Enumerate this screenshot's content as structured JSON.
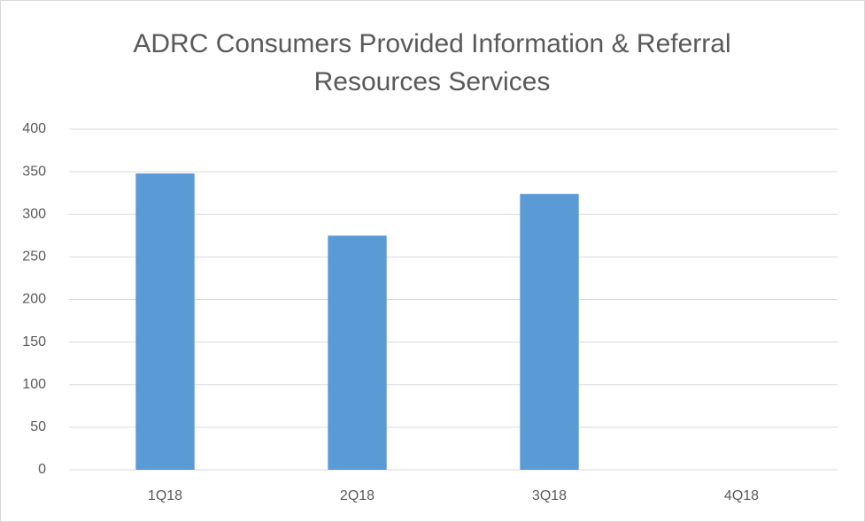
{
  "chart_data": {
    "type": "bar",
    "title": "ADRC Consumers Provided Information & Referral Resources Services",
    "categories": [
      "1Q18",
      "2Q18",
      "3Q18",
      "4Q18"
    ],
    "values": [
      348,
      275,
      324,
      0
    ],
    "color": "#5b9bd5",
    "ylim": [
      0,
      400
    ],
    "yticks": [
      0,
      50,
      100,
      150,
      200,
      250,
      300,
      350,
      400
    ],
    "grid": true
  }
}
